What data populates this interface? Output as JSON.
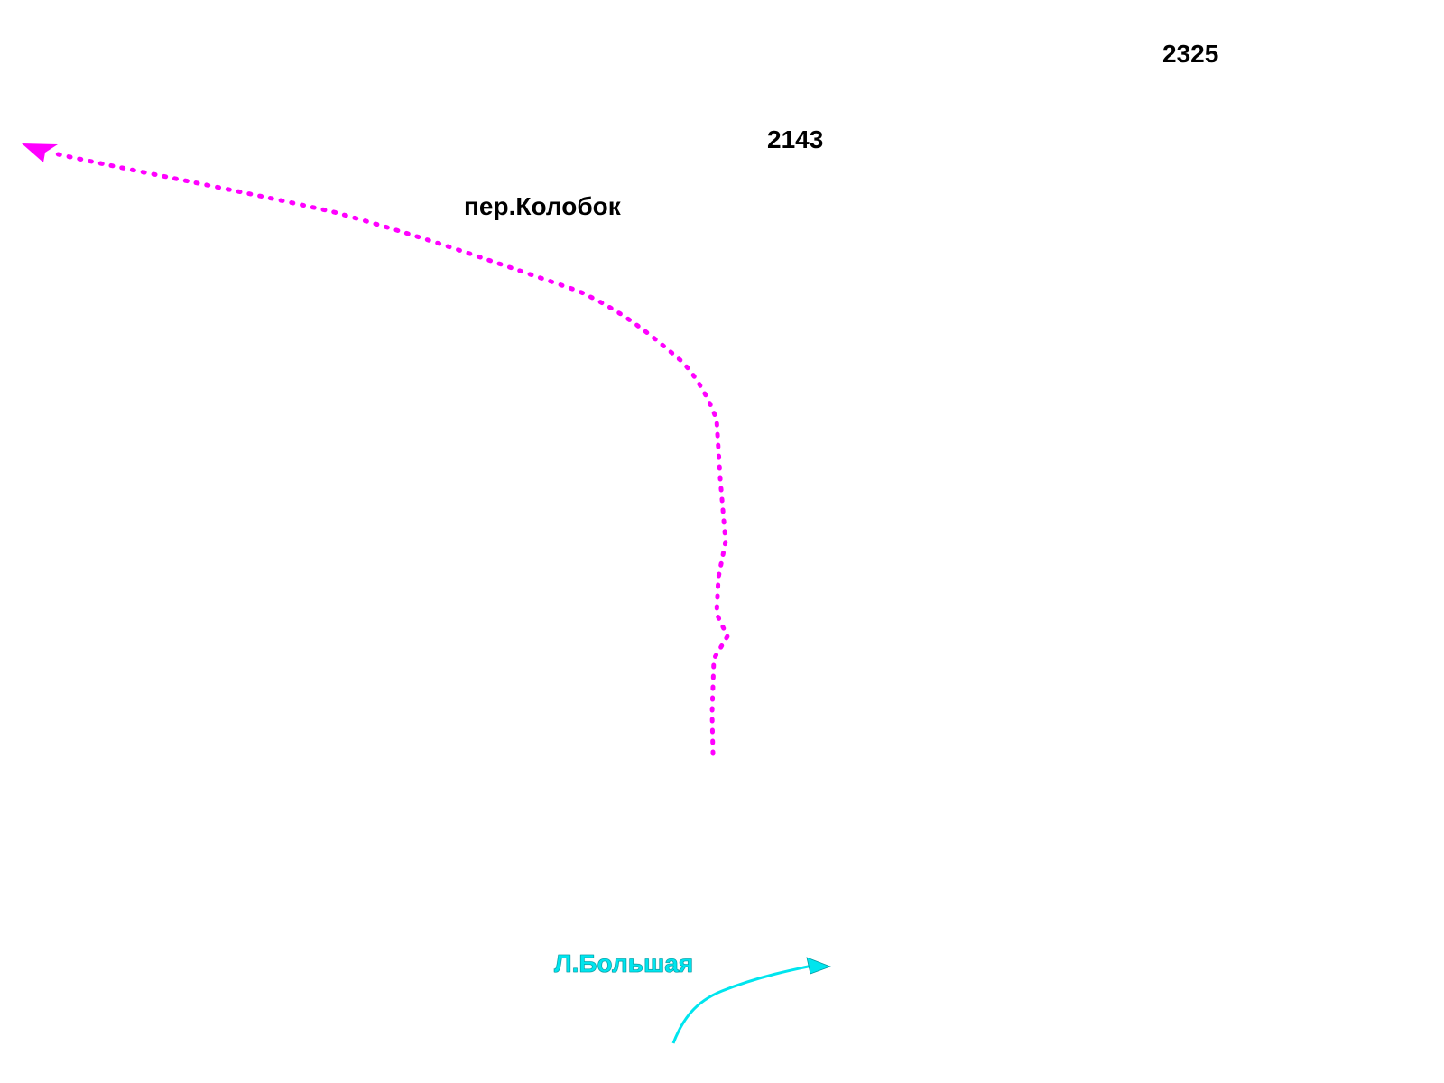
{
  "labels": {
    "number_2325": "2325",
    "number_2143": "2143",
    "street_name": "пер.Колобок",
    "river_name": "Л.Большая"
  },
  "colors": {
    "route": "#ff00ff",
    "river": "#00e5ee",
    "text": "#000000",
    "background": "#ffffff"
  },
  "icons": {
    "route_arrow": "arrowhead-icon",
    "river_arrow": "arrowhead-icon"
  }
}
